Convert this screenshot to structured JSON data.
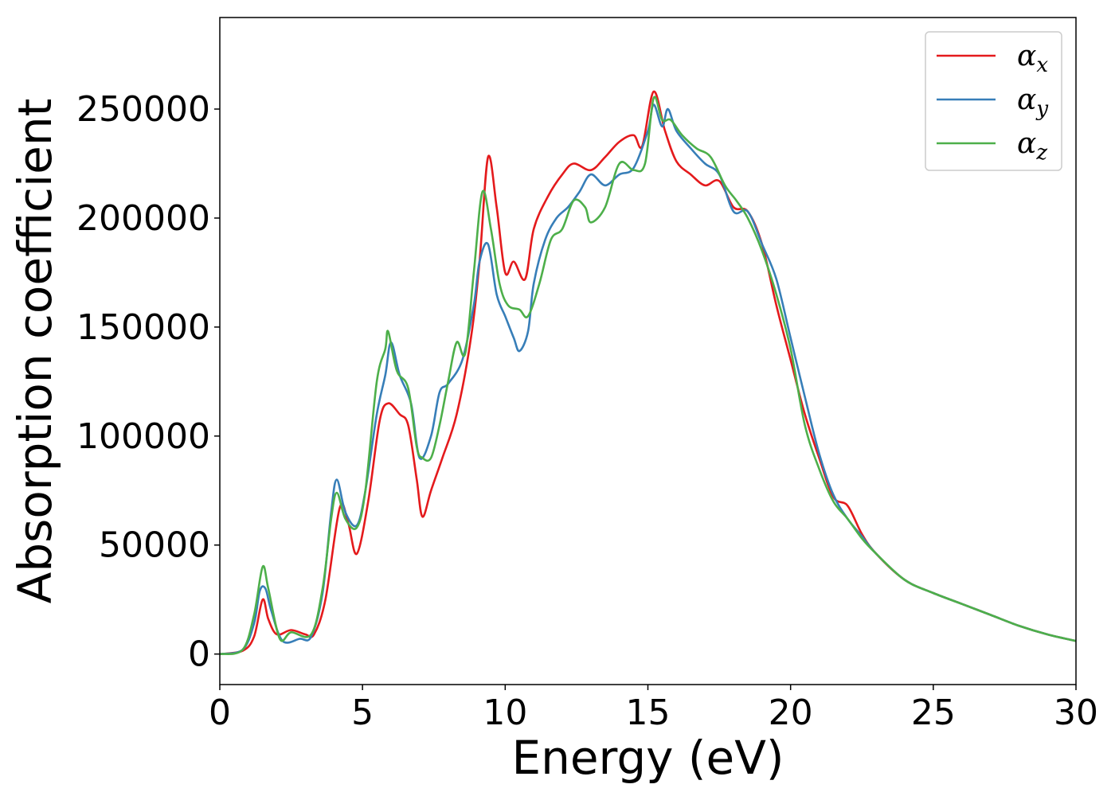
{
  "chart_data": {
    "type": "line",
    "title": "",
    "xlabel": "Energy (eV)",
    "ylabel": "Absorption coefficient",
    "xlim": [
      0,
      30
    ],
    "ylim": [
      -14000,
      292000
    ],
    "x_ticks": [
      "0",
      "5",
      "10",
      "15",
      "20",
      "25",
      "30"
    ],
    "y_ticks": [
      "0",
      "50000",
      "100000",
      "150000",
      "200000",
      "250000"
    ],
    "grid": false,
    "legend_position": "top-right",
    "series": [
      {
        "name": "αx",
        "label_base": "α",
        "label_sub": "x",
        "color": "#e41a1c",
        "points": [
          [
            0,
            0
          ],
          [
            0.8,
            1500
          ],
          [
            1.2,
            8000
          ],
          [
            1.5,
            25000
          ],
          [
            1.7,
            16000
          ],
          [
            2.0,
            9000
          ],
          [
            2.5,
            11000
          ],
          [
            3.0,
            9000
          ],
          [
            3.3,
            9000
          ],
          [
            3.7,
            25000
          ],
          [
            4.2,
            67000
          ],
          [
            4.5,
            60000
          ],
          [
            4.8,
            46000
          ],
          [
            5.2,
            70000
          ],
          [
            5.6,
            107000
          ],
          [
            5.9,
            115000
          ],
          [
            6.3,
            110000
          ],
          [
            6.6,
            105000
          ],
          [
            6.9,
            80000
          ],
          [
            7.1,
            63000
          ],
          [
            7.4,
            75000
          ],
          [
            7.8,
            90000
          ],
          [
            8.3,
            110000
          ],
          [
            8.8,
            145000
          ],
          [
            9.1,
            180000
          ],
          [
            9.4,
            228000
          ],
          [
            9.7,
            205000
          ],
          [
            10.0,
            175000
          ],
          [
            10.3,
            180000
          ],
          [
            10.7,
            172000
          ],
          [
            11.0,
            195000
          ],
          [
            11.5,
            210000
          ],
          [
            12.0,
            220000
          ],
          [
            12.4,
            225000
          ],
          [
            13.0,
            222000
          ],
          [
            13.5,
            228000
          ],
          [
            14.0,
            235000
          ],
          [
            14.5,
            238000
          ],
          [
            14.8,
            233000
          ],
          [
            15.2,
            258000
          ],
          [
            15.6,
            240000
          ],
          [
            16.0,
            226000
          ],
          [
            16.5,
            220000
          ],
          [
            17.0,
            215000
          ],
          [
            17.5,
            217000
          ],
          [
            18.0,
            205000
          ],
          [
            18.5,
            203000
          ],
          [
            19.0,
            188000
          ],
          [
            19.5,
            160000
          ],
          [
            20.0,
            135000
          ],
          [
            20.5,
            110000
          ],
          [
            21.0,
            90000
          ],
          [
            21.5,
            72000
          ],
          [
            22.0,
            68000
          ],
          [
            22.5,
            55000
          ],
          [
            23.0,
            46000
          ],
          [
            24.0,
            34000
          ],
          [
            25.0,
            28000
          ],
          [
            26.0,
            23000
          ],
          [
            27.0,
            18000
          ],
          [
            28.0,
            13000
          ],
          [
            29.0,
            9000
          ],
          [
            30.0,
            6000
          ]
        ]
      },
      {
        "name": "αy",
        "label_base": "α",
        "label_sub": "y",
        "color": "#377eb8",
        "points": [
          [
            0,
            0
          ],
          [
            0.8,
            2000
          ],
          [
            1.2,
            14000
          ],
          [
            1.4,
            29000
          ],
          [
            1.6,
            30000
          ],
          [
            1.8,
            20000
          ],
          [
            2.2,
            6000
          ],
          [
            2.8,
            7000
          ],
          [
            3.2,
            8000
          ],
          [
            3.6,
            28000
          ],
          [
            3.9,
            65000
          ],
          [
            4.1,
            80000
          ],
          [
            4.4,
            65000
          ],
          [
            4.8,
            59000
          ],
          [
            5.1,
            75000
          ],
          [
            5.5,
            110000
          ],
          [
            5.8,
            128000
          ],
          [
            6.0,
            143000
          ],
          [
            6.3,
            128000
          ],
          [
            6.7,
            115000
          ],
          [
            7.0,
            90000
          ],
          [
            7.4,
            100000
          ],
          [
            7.7,
            120000
          ],
          [
            8.0,
            124000
          ],
          [
            8.5,
            135000
          ],
          [
            8.9,
            160000
          ],
          [
            9.1,
            180000
          ],
          [
            9.4,
            188000
          ],
          [
            9.7,
            165000
          ],
          [
            10.0,
            155000
          ],
          [
            10.3,
            145000
          ],
          [
            10.5,
            139000
          ],
          [
            10.8,
            148000
          ],
          [
            11.0,
            170000
          ],
          [
            11.4,
            190000
          ],
          [
            11.8,
            200000
          ],
          [
            12.2,
            205000
          ],
          [
            12.6,
            212000
          ],
          [
            13.0,
            220000
          ],
          [
            13.5,
            215000
          ],
          [
            14.0,
            220000
          ],
          [
            14.5,
            223000
          ],
          [
            15.0,
            240000
          ],
          [
            15.2,
            252000
          ],
          [
            15.5,
            242000
          ],
          [
            15.7,
            250000
          ],
          [
            16.0,
            240000
          ],
          [
            16.5,
            232000
          ],
          [
            17.0,
            225000
          ],
          [
            17.5,
            220000
          ],
          [
            18.0,
            203000
          ],
          [
            18.5,
            203000
          ],
          [
            19.0,
            188000
          ],
          [
            19.5,
            172000
          ],
          [
            20.0,
            145000
          ],
          [
            20.5,
            118000
          ],
          [
            21.0,
            92000
          ],
          [
            21.5,
            73000
          ],
          [
            22.0,
            62000
          ],
          [
            22.5,
            54000
          ],
          [
            23.0,
            46000
          ],
          [
            24.0,
            34000
          ],
          [
            25.0,
            28000
          ],
          [
            26.0,
            23000
          ],
          [
            27.0,
            18000
          ],
          [
            28.0,
            13000
          ],
          [
            29.0,
            9000
          ],
          [
            30.0,
            6000
          ]
        ]
      },
      {
        "name": "αz",
        "label_base": "α",
        "label_sub": "z",
        "color": "#4daf4a",
        "points": [
          [
            0,
            0
          ],
          [
            0.8,
            2000
          ],
          [
            1.2,
            18000
          ],
          [
            1.5,
            40000
          ],
          [
            1.7,
            30000
          ],
          [
            2.1,
            7000
          ],
          [
            2.5,
            10000
          ],
          [
            3.2,
            9000
          ],
          [
            3.6,
            30000
          ],
          [
            3.9,
            62000
          ],
          [
            4.1,
            74000
          ],
          [
            4.4,
            62000
          ],
          [
            4.8,
            58000
          ],
          [
            5.1,
            75000
          ],
          [
            5.5,
            125000
          ],
          [
            5.8,
            140000
          ],
          [
            5.9,
            148000
          ],
          [
            6.2,
            130000
          ],
          [
            6.6,
            122000
          ],
          [
            6.9,
            95000
          ],
          [
            7.1,
            90000
          ],
          [
            7.4,
            90000
          ],
          [
            7.7,
            105000
          ],
          [
            8.0,
            125000
          ],
          [
            8.3,
            143000
          ],
          [
            8.6,
            138000
          ],
          [
            8.9,
            175000
          ],
          [
            9.2,
            212000
          ],
          [
            9.5,
            195000
          ],
          [
            9.8,
            170000
          ],
          [
            10.1,
            160000
          ],
          [
            10.5,
            158000
          ],
          [
            10.8,
            155000
          ],
          [
            11.2,
            170000
          ],
          [
            11.6,
            190000
          ],
          [
            12.0,
            195000
          ],
          [
            12.4,
            208000
          ],
          [
            12.8,
            205000
          ],
          [
            13.0,
            198000
          ],
          [
            13.5,
            205000
          ],
          [
            14.0,
            225000
          ],
          [
            14.5,
            222000
          ],
          [
            14.9,
            225000
          ],
          [
            15.2,
            255000
          ],
          [
            15.5,
            245000
          ],
          [
            15.8,
            245000
          ],
          [
            16.2,
            238000
          ],
          [
            16.7,
            232000
          ],
          [
            17.2,
            228000
          ],
          [
            17.7,
            215000
          ],
          [
            18.1,
            208000
          ],
          [
            18.5,
            200000
          ],
          [
            19.0,
            185000
          ],
          [
            19.5,
            165000
          ],
          [
            20.0,
            140000
          ],
          [
            20.5,
            105000
          ],
          [
            21.0,
            85000
          ],
          [
            21.5,
            70000
          ],
          [
            22.0,
            62000
          ],
          [
            22.5,
            53000
          ],
          [
            23.0,
            46000
          ],
          [
            24.0,
            34000
          ],
          [
            25.0,
            28000
          ],
          [
            26.0,
            23000
          ],
          [
            27.0,
            18000
          ],
          [
            28.0,
            13000
          ],
          [
            29.0,
            9000
          ],
          [
            30.0,
            6000
          ]
        ]
      }
    ]
  }
}
